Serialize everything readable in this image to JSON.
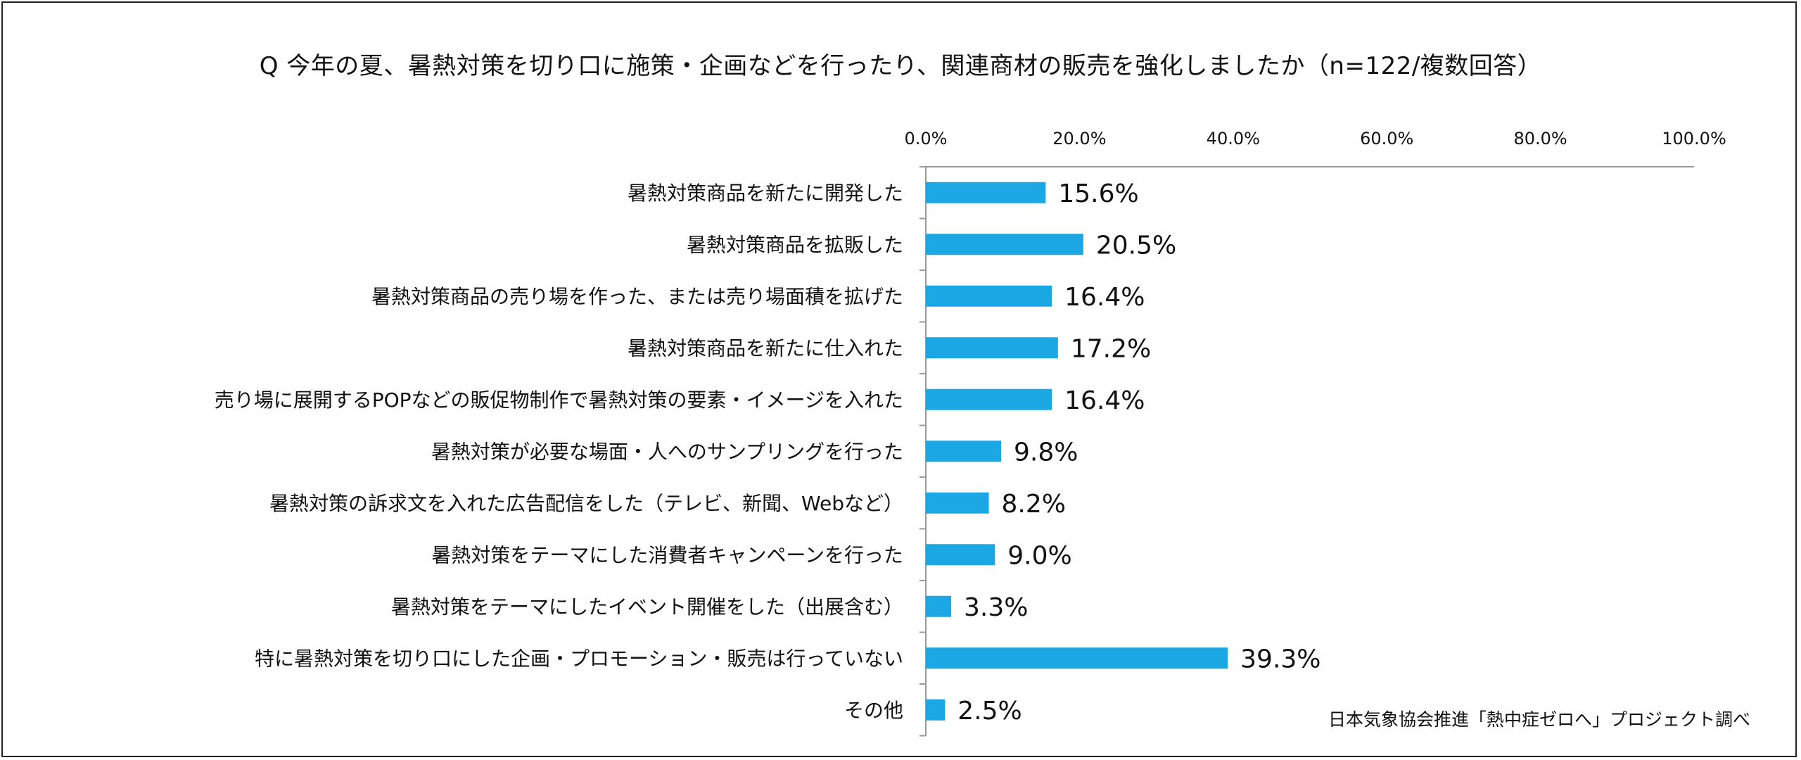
{
  "chart_data": {
    "type": "bar",
    "orientation": "horizontal",
    "title": "Q 今年の夏、暑熱対策を切り口に施策・企画などを行ったり、関連商材の販売を強化しましたか（n=122/複数回答）",
    "xlabel": "",
    "ylabel": "",
    "xlim": [
      0,
      100
    ],
    "x_ticks": [
      "0.0%",
      "20.0%",
      "40.0%",
      "60.0%",
      "80.0%",
      "100.0%"
    ],
    "x_tick_values": [
      0,
      20,
      40,
      60,
      80,
      100
    ],
    "grid": false,
    "legend": "none",
    "bar_color": "#1aa7e4",
    "categories": [
      "暑熱対策商品を新たに開発した",
      "暑熱対策商品を拡販した",
      "暑熱対策商品の売り場を作った、または売り場面積を拡げた",
      "暑熱対策商品を新たに仕入れた",
      "売り場に展開するPOPなどの販促物制作で暑熱対策の要素・イメージを入れた",
      "暑熱対策が必要な場面・人へのサンプリングを行った",
      "暑熱対策の訴求文を入れた広告配信をした（テレビ、新聞、Webなど）",
      "暑熱対策をテーマにした消費者キャンペーンを行った",
      "暑熱対策をテーマにしたイベント開催をした（出展含む）",
      "特に暑熱対策を切り口にした企画・プロモーション・販売は行っていない",
      "その他"
    ],
    "values": [
      15.6,
      20.5,
      16.4,
      17.2,
      16.4,
      9.8,
      8.2,
      9.0,
      3.3,
      39.3,
      2.5
    ],
    "value_labels": [
      "15.6%",
      "20.5%",
      "16.4%",
      "17.2%",
      "16.4%",
      "9.8%",
      "8.2%",
      "9.0%",
      "3.3%",
      "39.3%",
      "2.5%"
    ]
  },
  "source": "日本気象協会推進「熱中症ゼロへ」プロジェクト調べ"
}
